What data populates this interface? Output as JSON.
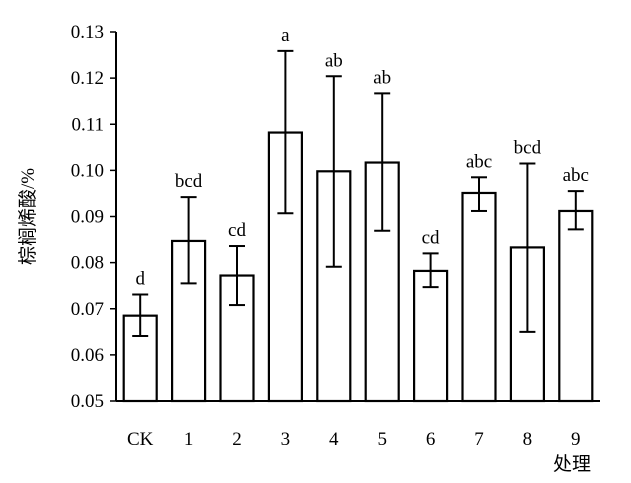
{
  "chart_data": {
    "type": "bar",
    "xlabel": "处理",
    "ylabel": "棕榈烯酸/%",
    "ylim": [
      0.05,
      0.13
    ],
    "yticks": [
      0.05,
      0.06,
      0.07,
      0.08,
      0.09,
      0.1,
      0.11,
      0.12,
      0.13
    ],
    "ytick_labels": [
      "0.05",
      "0.06",
      "0.07",
      "0.08",
      "0.09",
      "0.10",
      "0.11",
      "0.12",
      "0.13"
    ],
    "categories": [
      "CK",
      "1",
      "2",
      "3",
      "4",
      "5",
      "6",
      "7",
      "8",
      "9"
    ],
    "values": [
      0.0685,
      0.0847,
      0.0772,
      0.1082,
      0.0998,
      0.1017,
      0.0782,
      0.0951,
      0.0833,
      0.0912
    ],
    "error_upper": [
      0.0731,
      0.0942,
      0.0836,
      0.1259,
      0.1204,
      0.1167,
      0.082,
      0.0985,
      0.1015,
      0.0955
    ],
    "error_lower": [
      0.0641,
      0.0755,
      0.0708,
      0.0907,
      0.0791,
      0.0869,
      0.0747,
      0.0912,
      0.065,
      0.0872
    ],
    "significance": [
      "d",
      "bcd",
      "cd",
      "a",
      "ab",
      "ab",
      "cd",
      "abc",
      "bcd",
      "abc"
    ],
    "grid": false,
    "legend": "none",
    "bar_fill": "#ffffff",
    "bar_stroke": "#000000"
  }
}
